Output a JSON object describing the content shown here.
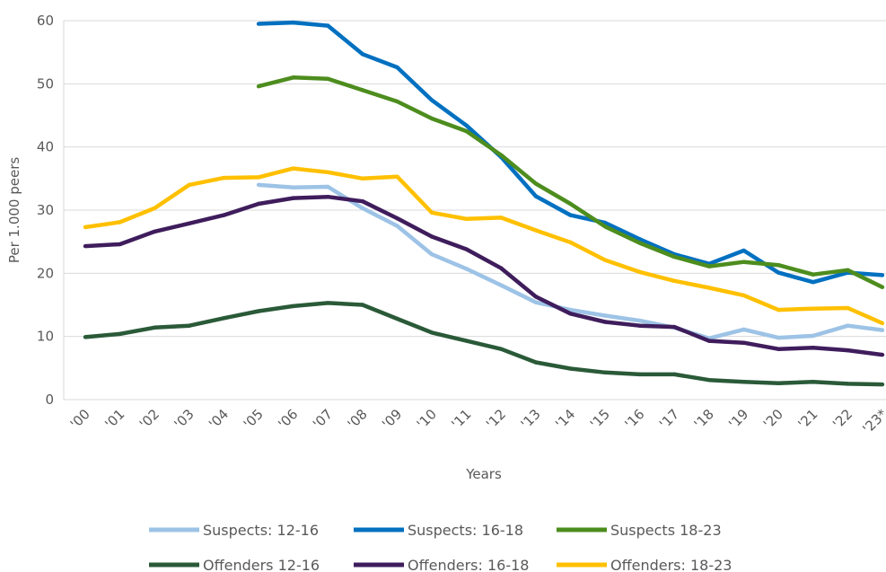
{
  "chart_data": {
    "type": "line",
    "xlabel": "Years",
    "ylabel": "Per 1.000 peers",
    "ylim": [
      0,
      60
    ],
    "yticks": [
      0,
      10,
      20,
      30,
      40,
      50,
      60
    ],
    "grid": true,
    "legend_position": "bottom",
    "categories": [
      "'00",
      "'01",
      "'02",
      "'03",
      "'04",
      "'05",
      "'06",
      "'07",
      "'08",
      "'09",
      "'10",
      "'11",
      "'12",
      "'13",
      "'14",
      "'15",
      "'16",
      "'17",
      "'18",
      "'19",
      "'20",
      "'21",
      "'22",
      "'23*"
    ],
    "series": [
      {
        "name": "Suspects: 12-16",
        "color": "#9dc3e6",
        "values": [
          null,
          null,
          null,
          null,
          null,
          34.0,
          33.6,
          33.7,
          30.3,
          27.5,
          23.0,
          20.7,
          18.1,
          15.4,
          14.2,
          13.3,
          12.5,
          11.4,
          9.7,
          11.1,
          9.8,
          10.1,
          11.7,
          11.0
        ]
      },
      {
        "name": "Suspects: 16-18",
        "color": "#0070c0",
        "values": [
          null,
          null,
          null,
          null,
          null,
          59.5,
          59.7,
          59.2,
          54.7,
          52.6,
          47.4,
          43.4,
          38.4,
          32.2,
          29.2,
          28.0,
          25.4,
          23.0,
          21.5,
          23.6,
          20.1,
          18.6,
          20.1,
          19.7
        ]
      },
      {
        "name": "Suspects 18-23",
        "color": "#4d8d1e",
        "values": [
          null,
          null,
          null,
          null,
          null,
          49.6,
          51.0,
          50.8,
          49.0,
          47.2,
          44.5,
          42.5,
          38.7,
          34.2,
          31.0,
          27.4,
          24.8,
          22.6,
          21.1,
          21.8,
          21.3,
          19.8,
          20.5,
          17.8
        ]
      },
      {
        "name": "Offenders 12-16",
        "color": "#2a5a38",
        "values": [
          9.9,
          10.4,
          11.4,
          11.7,
          12.9,
          14.0,
          14.8,
          15.3,
          15.0,
          12.8,
          10.6,
          9.3,
          8.0,
          5.9,
          4.9,
          4.3,
          4.0,
          4.0,
          3.1,
          2.8,
          2.6,
          2.8,
          2.5,
          2.4
        ]
      },
      {
        "name": "Offenders: 16-18",
        "color": "#3f1d5c",
        "values": [
          24.3,
          24.6,
          26.6,
          27.9,
          29.2,
          31.0,
          31.9,
          32.1,
          31.4,
          28.7,
          25.8,
          23.8,
          20.8,
          16.3,
          13.6,
          12.3,
          11.7,
          11.5,
          9.3,
          9.0,
          8.0,
          8.2,
          7.8,
          7.1
        ]
      },
      {
        "name": "Offenders: 18-23",
        "color": "#ffc000",
        "values": [
          27.3,
          28.1,
          30.3,
          34.0,
          35.1,
          35.2,
          36.6,
          36.0,
          35.0,
          35.3,
          29.6,
          28.6,
          28.8,
          26.8,
          24.9,
          22.1,
          20.2,
          18.8,
          17.7,
          16.5,
          14.2,
          14.4,
          14.5,
          12.1
        ]
      }
    ]
  }
}
